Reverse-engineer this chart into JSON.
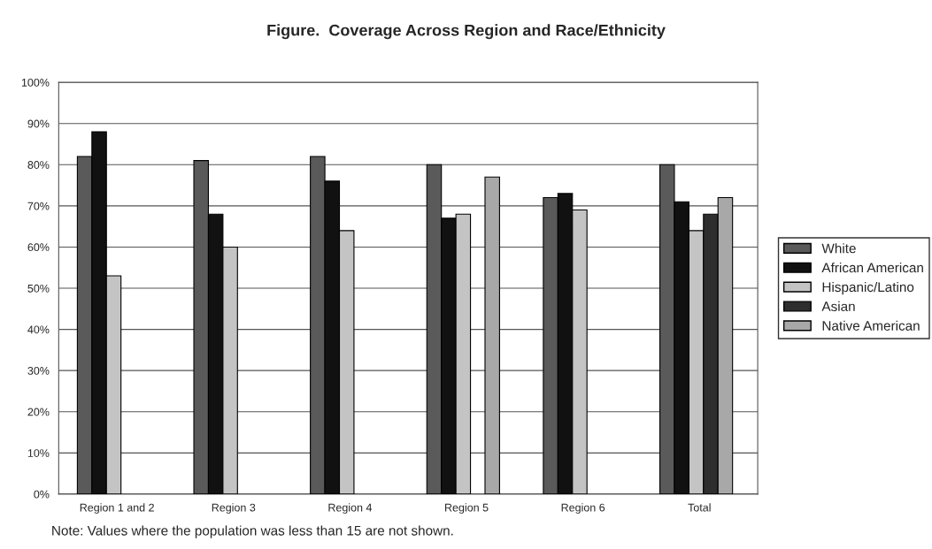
{
  "chart_data": {
    "type": "bar",
    "title": "Figure.  Coverage Across Region and Race/Ethnicity",
    "categories": [
      "Region 1 and 2",
      "Region 3",
      "Region 4",
      "Region 5",
      "Region 6",
      "Total"
    ],
    "series": [
      {
        "name": "White",
        "color": "#5a5a5a",
        "values": [
          82,
          81,
          82,
          80,
          72,
          80
        ]
      },
      {
        "name": "African American",
        "color": "#111111",
        "values": [
          88,
          68,
          76,
          67,
          73,
          71
        ]
      },
      {
        "name": "Hispanic/Latino",
        "color": "#c4c4c4",
        "values": [
          53,
          60,
          64,
          68,
          69,
          64
        ]
      },
      {
        "name": "Asian",
        "color": "#2e2e2e",
        "values": [
          null,
          null,
          null,
          null,
          null,
          68
        ]
      },
      {
        "name": "Native American",
        "color": "#a8a8a8",
        "values": [
          null,
          null,
          null,
          77,
          null,
          72
        ]
      }
    ],
    "ylim": [
      0,
      100
    ],
    "yticks": [
      {
        "value": 0,
        "label": "0%"
      },
      {
        "value": 10,
        "label": "10%"
      },
      {
        "value": 20,
        "label": "20%"
      },
      {
        "value": 30,
        "label": "30%"
      },
      {
        "value": 40,
        "label": "40%"
      },
      {
        "value": 50,
        "label": "50%"
      },
      {
        "value": 60,
        "label": "60%"
      },
      {
        "value": 70,
        "label": "70%"
      },
      {
        "value": 80,
        "label": "80%"
      },
      {
        "value": 90,
        "label": "90%"
      },
      {
        "value": 100,
        "label": "100%"
      }
    ],
    "grid": "y",
    "legend": "right",
    "annotations": [
      "Note: Values where the population was less than 15 are not shown."
    ]
  }
}
